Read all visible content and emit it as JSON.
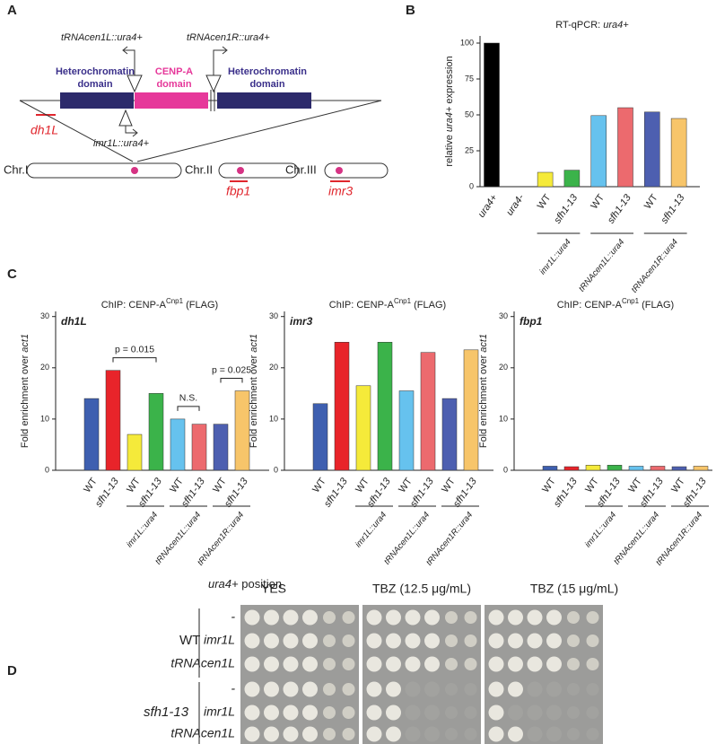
{
  "panel_labels": [
    "A",
    "B",
    "C",
    "D"
  ],
  "diagram": {
    "tRNAcen1L": "tRNAcen1L::ura4+",
    "tRNAcen1R": "tRNAcen1R::ura4+",
    "hetero_left": [
      "Heterochromatin",
      "domain"
    ],
    "cenpa": [
      "CENP-A",
      "domain"
    ],
    "hetero_right": [
      "Heterochromatin",
      "domain"
    ],
    "dh1L": "dh1L",
    "imr1L": "imr1L::ura4+",
    "chromosomes": [
      "Chr.I",
      "Chr.II",
      "Chr.III"
    ],
    "fbp1": "fbp1",
    "imr3": "imr3"
  },
  "chart_data": [
    {
      "type": "bar",
      "title": [
        "RT-qPCR: ",
        "ura4+"
      ],
      "ylabel": [
        "relative ",
        "ura4+",
        " expression"
      ],
      "categories": [
        "ura4+",
        "ura4-",
        "WT",
        "sfh1-13",
        "WT",
        "sfh1-13",
        "WT",
        "sfh1-13"
      ],
      "values": [
        100,
        0,
        10,
        11.5,
        49.5,
        55,
        52,
        47.5
      ],
      "colors": [
        "#000000",
        "#000000",
        "#f5ea3a",
        "#3bb34a",
        "#66c2ee",
        "#ec6a6e",
        "#4d5fb0",
        "#f7c56a"
      ],
      "group_labels": [
        "imr1L::ura4",
        "tRNAcen1L::ura4",
        "tRNAcen1R::ura4"
      ],
      "ylim": [
        0,
        105
      ],
      "yticks": [
        0,
        25,
        50,
        75,
        100
      ]
    },
    {
      "type": "bar",
      "title": [
        "ChIP: CENP-A",
        "Cnp1",
        " (FLAG)"
      ],
      "ylabel": [
        "Fold enrichment over ",
        "act1"
      ],
      "locus": "dh1L",
      "categories": [
        "WT",
        "sfh1-13",
        "WT",
        "sfh1-13",
        "WT",
        "sfh1-13",
        "WT",
        "sfh1-13"
      ],
      "values": [
        14,
        19.5,
        7,
        15,
        10,
        9,
        9,
        15.5
      ],
      "colors": [
        "#3e5fb0",
        "#e8242a",
        "#f5ea3a",
        "#3bb34a",
        "#66c2ee",
        "#ec6a6e",
        "#4d5fb0",
        "#f7c56a"
      ],
      "group_labels": [
        "imr1L::ura4",
        "tRNAcen1L::ura4",
        "tRNAcen1R::ura4"
      ],
      "annotations": [
        "p = 0.015",
        "N.S.",
        "p = 0.025"
      ],
      "ylim": [
        0,
        31
      ],
      "yticks": [
        0,
        10,
        20,
        30
      ]
    },
    {
      "type": "bar",
      "title": [
        "ChIP: CENP-A",
        "Cnp1",
        " (FLAG)"
      ],
      "ylabel": [
        "Fold enrichment over ",
        "act1"
      ],
      "locus": "imr3",
      "categories": [
        "WT",
        "sfh1-13",
        "WT",
        "sfh1-13",
        "WT",
        "sfh1-13",
        "WT",
        "sfh1-13"
      ],
      "values": [
        13,
        25,
        16.5,
        25,
        15.5,
        23,
        14,
        23.5
      ],
      "colors": [
        "#3e5fb0",
        "#e8242a",
        "#f5ea3a",
        "#3bb34a",
        "#66c2ee",
        "#ec6a6e",
        "#4d5fb0",
        "#f7c56a"
      ],
      "group_labels": [
        "imr1L::ura4",
        "tRNAcen1L::ura4",
        "tRNAcen1R::ura4"
      ],
      "ylim": [
        0,
        31
      ],
      "yticks": [
        0,
        10,
        20,
        30
      ]
    },
    {
      "type": "bar",
      "title": [
        "ChIP: CENP-A",
        "Cnp1",
        " (FLAG)"
      ],
      "ylabel": [
        "Fold enrichment over ",
        "act1"
      ],
      "locus": "fbp1",
      "categories": [
        "WT",
        "sfh1-13",
        "WT",
        "sfh1-13",
        "WT",
        "sfh1-13",
        "WT",
        "sfh1-13"
      ],
      "values": [
        0.8,
        0.7,
        1,
        1,
        0.8,
        0.8,
        0.7,
        0.8
      ],
      "colors": [
        "#3e5fb0",
        "#e8242a",
        "#f5ea3a",
        "#3bb34a",
        "#66c2ee",
        "#ec6a6e",
        "#4d5fb0",
        "#f7c56a"
      ],
      "group_labels": [
        "imr1L::ura4",
        "tRNAcen1L::ura4",
        "tRNAcen1R::ura4"
      ],
      "ylim": [
        0,
        31
      ],
      "yticks": [
        0,
        10,
        20,
        30
      ]
    }
  ],
  "spot_assay": {
    "position_label": [
      "ura4+",
      " position"
    ],
    "media": [
      "YES",
      "TBZ (12.5 μg/mL)",
      "TBZ (15 μg/mL)"
    ],
    "strains": [
      "WT",
      "sfh1-13"
    ],
    "positions": [
      "-",
      "imr1L",
      "tRNAcen1L",
      "-",
      "imr1L",
      "tRNAcen1L"
    ]
  }
}
